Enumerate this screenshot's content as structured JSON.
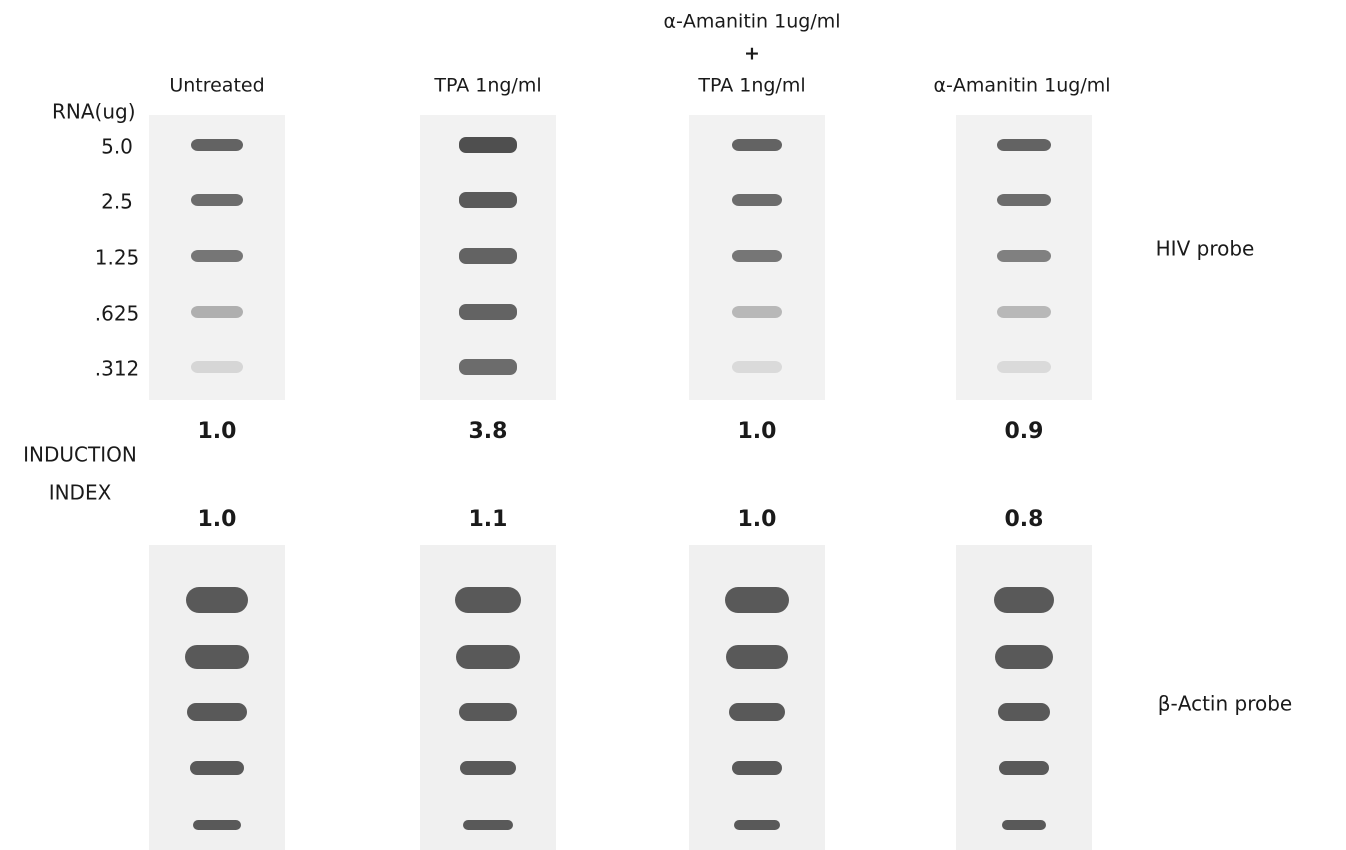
{
  "figure": {
    "columns": [
      {
        "header": [
          "Untreated"
        ],
        "hiv_index": "1.0",
        "actin_index": "1.0"
      },
      {
        "header": [
          "TPA 1ng/ml"
        ],
        "hiv_index": "3.8",
        "actin_index": "1.1"
      },
      {
        "header": [
          "α-Amanitin 1ug/ml",
          "+",
          "TPA 1ng/ml"
        ],
        "hiv_index": "1.0",
        "actin_index": "1.0"
      },
      {
        "header": [
          "α-Amanitin 1ug/ml"
        ],
        "hiv_index": "0.9",
        "actin_index": "0.8"
      }
    ],
    "rna_label": "RNA(ug)",
    "rna_amounts": [
      "5.0",
      "2.5",
      "1.25",
      ".625",
      ".312"
    ],
    "induction_label": [
      "INDUCTION",
      "INDEX"
    ],
    "probes": [
      "HIV probe",
      "β-Actin probe"
    ]
  }
}
